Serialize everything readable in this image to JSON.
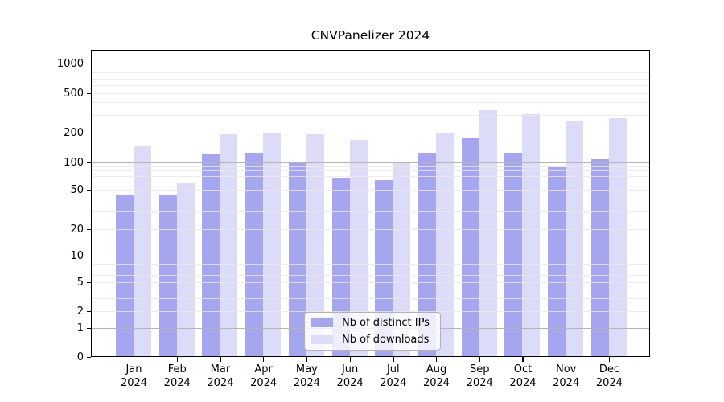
{
  "title": "CNVPanelizer 2024",
  "chart_data": {
    "type": "bar",
    "title": "CNVPanelizer 2024",
    "year": "2024",
    "categories": [
      "Jan",
      "Feb",
      "Mar",
      "Apr",
      "May",
      "Jun",
      "Jul",
      "Aug",
      "Sep",
      "Oct",
      "Nov",
      "Dec"
    ],
    "series": [
      {
        "name": "Nb of distinct IPs",
        "color": "#a6a6ef",
        "values": [
          43,
          43,
          120,
          122,
          100,
          67,
          62,
          122,
          172,
          124,
          86,
          106
        ]
      },
      {
        "name": "Nb of downloads",
        "color": "#dcdcf9",
        "values": [
          143,
          58,
          188,
          198,
          188,
          167,
          100,
          194,
          330,
          300,
          260,
          275
        ]
      }
    ],
    "yticks": [
      0,
      1,
      2,
      5,
      10,
      20,
      50,
      100,
      200,
      500,
      1000
    ],
    "yscale": "symlog",
    "ylim": [
      0,
      1400
    ],
    "grid": true,
    "legend_position": "inside lower center-right",
    "colors": {
      "major_grid": "#b4b4b4",
      "minor_grid": "#e7e7e7",
      "axis": "#000000",
      "text": "#000000",
      "background": "#ffffff"
    }
  }
}
